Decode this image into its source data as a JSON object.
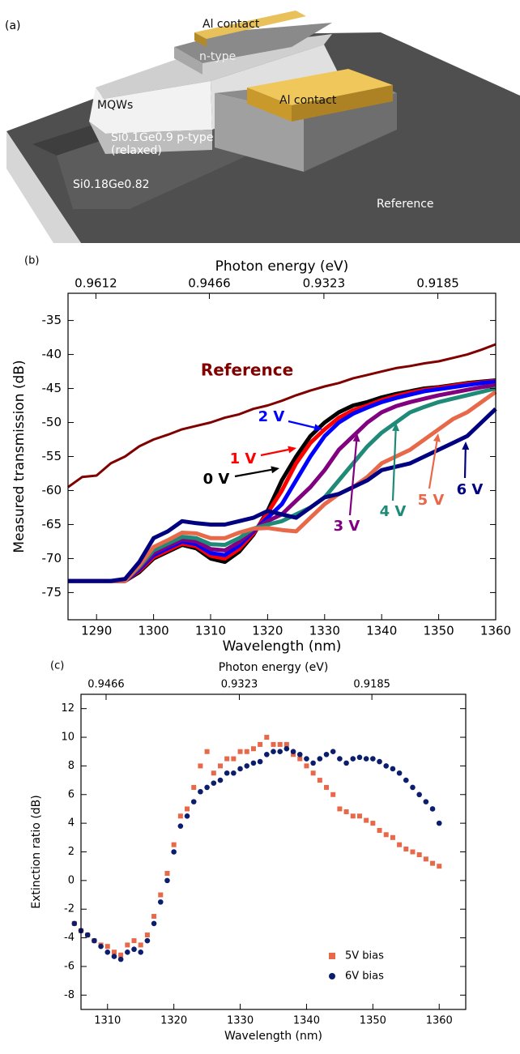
{
  "panel_a": {
    "label": "(a)",
    "labels": {
      "top_contact": "Al contact",
      "n_type": "n-type",
      "side_contact": "Al contact",
      "mqws": "MQWs",
      "p_type": "Si0.1Ge0.9 p-type",
      "p_type_note": "(relaxed)",
      "substrate": "Si0.18Ge0.82",
      "reference": "Reference"
    }
  },
  "chart_data": [
    {
      "type": "line",
      "panel_label": "(b)",
      "x_label": "Wavelength (nm)",
      "x2_label": "Photon energy (eV)",
      "y_label": "Measured transmission (dB)",
      "x": [
        1285,
        1287.5,
        1290,
        1292.5,
        1295,
        1297.5,
        1300,
        1302.5,
        1305,
        1307.5,
        1310,
        1312.5,
        1315,
        1317.5,
        1320,
        1322.5,
        1325,
        1327.5,
        1330,
        1332.5,
        1335,
        1337.5,
        1340,
        1342.5,
        1345,
        1347.5,
        1350,
        1352.5,
        1355,
        1357.5,
        1360
      ],
      "series": [
        {
          "name": "Reference",
          "color": "#800000",
          "values": [
            -59.5,
            -58,
            -57.8,
            -56,
            -55,
            -53.5,
            -52.5,
            -51.8,
            -51,
            -50.5,
            -50,
            -49.3,
            -48.8,
            -48,
            -47.5,
            -46.8,
            -46,
            -45.3,
            -44.7,
            -44.2,
            -43.5,
            -43,
            -42.5,
            -42,
            -41.7,
            -41.3,
            -41,
            -40.5,
            -40,
            -39.3,
            -38.5
          ]
        },
        {
          "name": "0 V",
          "color": "#000000",
          "values": [
            -73.3,
            -73.3,
            -73.3,
            -73.3,
            -73.3,
            -72,
            -70,
            -69,
            -68,
            -68.5,
            -70,
            -70.5,
            -69,
            -66.5,
            -63,
            -58.5,
            -55,
            -52,
            -50,
            -48.5,
            -47.5,
            -47,
            -46.3,
            -45.8,
            -45.4,
            -45,
            -44.8,
            -44.5,
            -44.2,
            -44,
            -43.8
          ]
        },
        {
          "name": "1 V",
          "color": "#ff0000",
          "values": [
            -73.3,
            -73.3,
            -73.3,
            -73.3,
            -73.3,
            -71.8,
            -69.8,
            -68.8,
            -67.8,
            -68.2,
            -69.6,
            -70,
            -68.6,
            -66.3,
            -63.3,
            -60,
            -56,
            -53,
            -51,
            -49.3,
            -48.2,
            -47.5,
            -46.7,
            -46.1,
            -45.6,
            -45.2,
            -44.9,
            -44.6,
            -44.3,
            -44.1,
            -43.9
          ]
        },
        {
          "name": "2 V",
          "color": "#0000ff",
          "values": [
            -73.3,
            -73.3,
            -73.3,
            -73.3,
            -73.3,
            -71.6,
            -69.5,
            -68.5,
            -67.5,
            -67.9,
            -69.2,
            -69.5,
            -68.1,
            -66,
            -64,
            -62,
            -58.5,
            -55,
            -52,
            -50,
            -48.7,
            -47.8,
            -47,
            -46.4,
            -45.9,
            -45.4,
            -45.1,
            -44.8,
            -44.5,
            -44.2,
            -44
          ]
        },
        {
          "name": "3 V",
          "color": "#800080",
          "values": [
            -73.3,
            -73.3,
            -73.3,
            -73.3,
            -73.3,
            -71.4,
            -69.2,
            -68.2,
            -67.2,
            -67.5,
            -68.6,
            -68.8,
            -67.6,
            -65.8,
            -64.5,
            -63.5,
            -61.5,
            -59.5,
            -57,
            -54,
            -52,
            -50,
            -48.5,
            -47.6,
            -47,
            -46.5,
            -46,
            -45.6,
            -45.2,
            -44.8,
            -44.5
          ]
        },
        {
          "name": "4 V",
          "color": "#1f8a78",
          "values": [
            -73.3,
            -73.3,
            -73.3,
            -73.3,
            -73.3,
            -71.2,
            -68.8,
            -67.8,
            -66.8,
            -67,
            -67.9,
            -68,
            -67,
            -65.6,
            -65,
            -64.5,
            -63.5,
            -62.5,
            -61,
            -58.5,
            -56,
            -53.5,
            -51.5,
            -50,
            -48.5,
            -47.7,
            -47,
            -46.5,
            -46,
            -45.5,
            -45
          ]
        },
        {
          "name": "5 V",
          "color": "#e8684a",
          "values": [
            -73.3,
            -73.3,
            -73.3,
            -73.3,
            -73.3,
            -71,
            -68.3,
            -67.3,
            -66.2,
            -66.3,
            -67,
            -67,
            -66.2,
            -65.6,
            -65.5,
            -65.8,
            -66,
            -64,
            -62,
            -60.5,
            -59.5,
            -58,
            -56,
            -55,
            -54,
            -52.5,
            -51,
            -49.5,
            -48.5,
            -47,
            -45.5
          ]
        },
        {
          "name": "6 V",
          "color": "#000080",
          "values": [
            -73.3,
            -73.3,
            -73.3,
            -73.3,
            -73,
            -70.5,
            -67,
            -66,
            -64.5,
            -64.8,
            -65,
            -65,
            -64.5,
            -64,
            -63,
            -63.5,
            -64,
            -62.5,
            -61,
            -60.5,
            -59.5,
            -58.5,
            -57,
            -56.5,
            -56,
            -55,
            -54,
            -53,
            -52,
            -50,
            -48
          ]
        }
      ],
      "xlim": [
        1285,
        1360
      ],
      "xticks": [
        1290,
        1300,
        1310,
        1320,
        1330,
        1340,
        1350,
        1360
      ],
      "x2ticks": [
        0.9612,
        0.9466,
        0.9323,
        0.9185
      ],
      "ylim": [
        -79,
        -31
      ],
      "yticks": [
        -75,
        -70,
        -65,
        -60,
        -55,
        -50,
        -45,
        -40,
        -35
      ]
    },
    {
      "type": "scatter",
      "panel_label": "(c)",
      "x_label": "Wavelength (nm)",
      "x2_label": "Photon energy (eV)",
      "y_label": "Extinction ratio (dB)",
      "x": [
        1305,
        1306,
        1307,
        1308,
        1309,
        1310,
        1311,
        1312,
        1313,
        1314,
        1315,
        1316,
        1317,
        1318,
        1319,
        1320,
        1321,
        1322,
        1323,
        1324,
        1325,
        1326,
        1327,
        1328,
        1329,
        1330,
        1331,
        1332,
        1333,
        1334,
        1335,
        1336,
        1337,
        1338,
        1339,
        1340,
        1341,
        1342,
        1343,
        1344,
        1345,
        1346,
        1347,
        1348,
        1349,
        1350,
        1351,
        1352,
        1353,
        1354,
        1355,
        1356,
        1357,
        1358,
        1359,
        1360
      ],
      "series": [
        {
          "name": "5V bias",
          "color": "#e8684a",
          "marker": "square",
          "values": [
            -3,
            -3.5,
            -3.8,
            -4.2,
            -4.5,
            -4.6,
            -5,
            -5.2,
            -4.5,
            -4.2,
            -4.5,
            -3.8,
            -2.5,
            -1,
            0.5,
            2.5,
            4.5,
            5,
            6.5,
            8,
            9,
            7.5,
            8,
            8.5,
            8.5,
            9,
            9,
            9.2,
            9.5,
            10,
            9.5,
            9.5,
            9.5,
            8.8,
            8.5,
            8,
            7.5,
            7,
            6.5,
            6,
            5,
            4.8,
            4.5,
            4.5,
            4.2,
            4,
            3.5,
            3.2,
            3,
            2.5,
            2.2,
            2,
            1.8,
            1.5,
            1.2,
            1
          ]
        },
        {
          "name": "6V bias",
          "color": "#0b1e6e",
          "marker": "circle",
          "values": [
            -3,
            -3.5,
            -3.8,
            -4.2,
            -4.6,
            -5,
            -5.3,
            -5.5,
            -5,
            -4.8,
            -5,
            -4.2,
            -3,
            -1.5,
            0,
            2,
            3.8,
            4.5,
            5.5,
            6.2,
            6.5,
            6.8,
            7,
            7.5,
            7.5,
            7.8,
            8,
            8.2,
            8.3,
            8.8,
            9,
            9,
            9.2,
            9,
            8.8,
            8.5,
            8.2,
            8.5,
            8.8,
            9,
            8.5,
            8.2,
            8.5,
            8.6,
            8.5,
            8.5,
            8.3,
            8,
            7.8,
            7.5,
            7,
            6.5,
            6,
            5.5,
            5,
            4
          ]
        }
      ],
      "xlim": [
        1306,
        1364
      ],
      "xticks": [
        1310,
        1320,
        1330,
        1340,
        1350,
        1360
      ],
      "x2ticks": [
        0.9466,
        0.9323,
        0.9185
      ],
      "ylim": [
        -9,
        13
      ],
      "yticks": [
        -8,
        -6,
        -4,
        -2,
        0,
        2,
        4,
        6,
        8,
        10,
        12
      ],
      "legend": "lower right"
    }
  ]
}
